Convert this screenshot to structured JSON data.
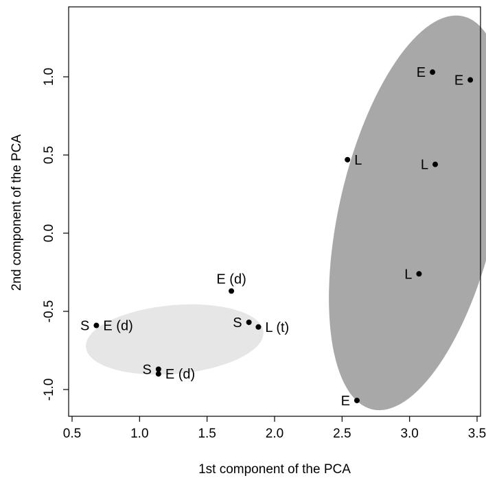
{
  "chart_data": {
    "type": "scatter",
    "title": "",
    "xlabel": "1st component of the PCA",
    "ylabel": "2nd component of the PCA",
    "xlim": [
      0.5,
      3.5
    ],
    "ylim": [
      -1.0,
      1.0
    ],
    "x_ticks": [
      0.5,
      1.0,
      1.5,
      2.0,
      2.5,
      3.0,
      3.5
    ],
    "x_tick_labels": [
      "0.5",
      "1.0",
      "1.5",
      "2.0",
      "2.5",
      "3.0",
      "3.5"
    ],
    "y_ticks": [
      -1.0,
      -0.5,
      0.0,
      0.5,
      1.0
    ],
    "y_tick_labels": [
      "-1.0",
      "-0.5",
      "0.0",
      "0.5",
      "1.0"
    ],
    "grid": false,
    "colors": {
      "cluster_dark": "#a8a8a8",
      "cluster_light": "#e6e6e6",
      "points": "#000000"
    },
    "clusters": [
      {
        "shade": "dark",
        "center": [
          3.06,
          0.13
        ],
        "semi_axes": [
          0.58,
          1.29
        ],
        "rotation_deg": 13
      },
      {
        "shade": "light",
        "center": [
          1.26,
          -0.68
        ],
        "semi_axes": [
          0.66,
          0.22
        ],
        "rotation_deg": -5
      }
    ],
    "points": [
      {
        "x": 3.17,
        "y": 1.03,
        "label": "E",
        "side": "left"
      },
      {
        "x": 3.45,
        "y": 0.98,
        "label": "E",
        "side": "left"
      },
      {
        "x": 2.54,
        "y": 0.47,
        "label": "L",
        "side": "right"
      },
      {
        "x": 3.19,
        "y": 0.44,
        "label": "L",
        "side": "left"
      },
      {
        "x": 3.07,
        "y": -0.26,
        "label": "L",
        "side": "left"
      },
      {
        "x": 2.61,
        "y": -1.07,
        "label": "E",
        "side": "left"
      },
      {
        "x": 1.68,
        "y": -0.37,
        "label": "E (d)",
        "side": "above"
      },
      {
        "x": 1.81,
        "y": -0.57,
        "label": "S",
        "side": "left"
      },
      {
        "x": 1.88,
        "y": -0.6,
        "label": "L (t)",
        "side": "right"
      },
      {
        "x": 0.68,
        "y": -0.59,
        "label": "S",
        "side": "left"
      },
      {
        "x": 0.68,
        "y": -0.59,
        "label": "E (d)",
        "side": "right"
      },
      {
        "x": 1.14,
        "y": -0.87,
        "label": "S",
        "side": "left"
      },
      {
        "x": 1.14,
        "y": -0.9,
        "label": "E (d)",
        "side": "right"
      }
    ]
  }
}
